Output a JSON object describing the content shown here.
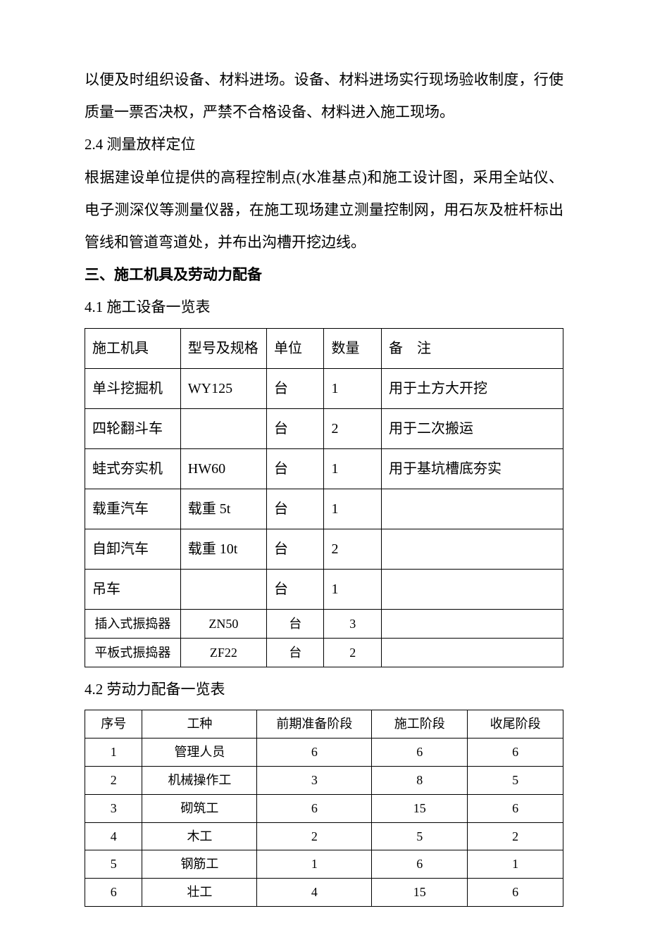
{
  "intro": {
    "p1": "以便及时组织设备、材料进场。设备、材料进场实行现场验收制度，行使质量一票否决权，严禁不合格设备、材料进入施工现场。",
    "s24": "2.4 测量放样定位",
    "p2": "根据建设单位提供的高程控制点(水准基点)和施工设计图，采用全站仪、电子测深仪等测量仪器，在施工现场建立测量控制网，用石灰及桩杆标出管线和管道弯道处，并布出沟槽开挖边线。"
  },
  "h3": "三、施工机具及劳动力配备",
  "s41": "4.1 施工设备一览表",
  "table1": {
    "header": {
      "equip": "施工机具",
      "model": "型号及规格",
      "unit": "单位",
      "qty": "数量",
      "note": "备　注"
    },
    "rows": [
      {
        "equip": "单斗挖掘机",
        "model": "WY125",
        "unit": "台",
        "qty": "1",
        "note": "用于土方大开挖",
        "compact": false
      },
      {
        "equip": "四轮翻斗车",
        "model": "",
        "unit": "台",
        "qty": "2",
        "note": "用于二次搬运",
        "compact": false
      },
      {
        "equip": "蛙式夯实机",
        "model": "HW60",
        "unit": "台",
        "qty": "1",
        "note": "用于基坑槽底夯实",
        "compact": false
      },
      {
        "equip": "载重汽车",
        "model": "载重 5t",
        "unit": "台",
        "qty": "1",
        "note": "",
        "compact": false
      },
      {
        "equip": "自卸汽车",
        "model": "载重 10t",
        "unit": "台",
        "qty": "2",
        "note": "",
        "compact": false
      },
      {
        "equip": "吊车",
        "model": "",
        "unit": "台",
        "qty": "1",
        "note": "",
        "compact": false
      },
      {
        "equip": "插入式振捣器",
        "model": "ZN50",
        "unit": "台",
        "qty": "3",
        "note": "",
        "compact": true
      },
      {
        "equip": "平板式振捣器",
        "model": "ZF22",
        "unit": "台",
        "qty": "2",
        "note": "",
        "compact": true
      }
    ]
  },
  "s42": "4.2 劳动力配备一览表",
  "table2": {
    "header": {
      "seq": "序号",
      "type": "工种",
      "p1": "前期准备阶段",
      "p2": "施工阶段",
      "p3": "收尾阶段"
    },
    "rows": [
      {
        "seq": "1",
        "type": "管理人员",
        "p1": "6",
        "p2": "6",
        "p3": "6"
      },
      {
        "seq": "2",
        "type": "机械操作工",
        "p1": "3",
        "p2": "8",
        "p3": "5"
      },
      {
        "seq": "3",
        "type": "砌筑工",
        "p1": "6",
        "p2": "15",
        "p3": "6"
      },
      {
        "seq": "4",
        "type": "木工",
        "p1": "2",
        "p2": "5",
        "p3": "2"
      },
      {
        "seq": "5",
        "type": "钢筋工",
        "p1": "1",
        "p2": "6",
        "p3": "1"
      },
      {
        "seq": "6",
        "type": "壮工",
        "p1": "4",
        "p2": "15",
        "p3": "6"
      }
    ]
  }
}
